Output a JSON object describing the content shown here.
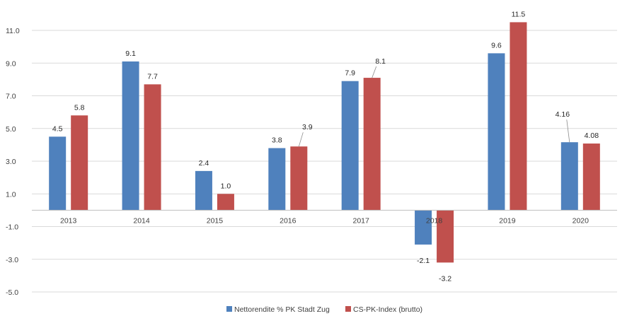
{
  "chart_data": {
    "type": "bar",
    "categories": [
      "2013",
      "2014",
      "2015",
      "2016",
      "2017",
      "2018",
      "2019",
      "2020"
    ],
    "series": [
      {
        "name": "Nettorendite % PK Stadt Zug",
        "color": "#4f81bd",
        "values": [
          4.5,
          9.1,
          2.4,
          3.8,
          7.9,
          -2.1,
          9.6,
          4.16
        ],
        "labels": [
          "4.5",
          "9.1",
          "2.4",
          "3.8",
          "7.9",
          "-2.1",
          "9.6",
          "4.16"
        ]
      },
      {
        "name": "CS-PK-Index (brutto)",
        "color": "#c0504d",
        "values": [
          5.8,
          7.7,
          1.0,
          3.9,
          8.1,
          -3.2,
          11.5,
          4.08
        ],
        "labels": [
          "5.8",
          "7.7",
          "1.0",
          "3.9",
          "8.1",
          "-3.2",
          "11.5",
          "4.08"
        ]
      }
    ],
    "yticks": [
      "-5.0",
      "-3.0",
      "-1.0",
      "1.0",
      "3.0",
      "5.0",
      "7.0",
      "9.0",
      "11.0"
    ],
    "ylim": [
      -5,
      11
    ],
    "grid": true,
    "legend": "bottom"
  }
}
